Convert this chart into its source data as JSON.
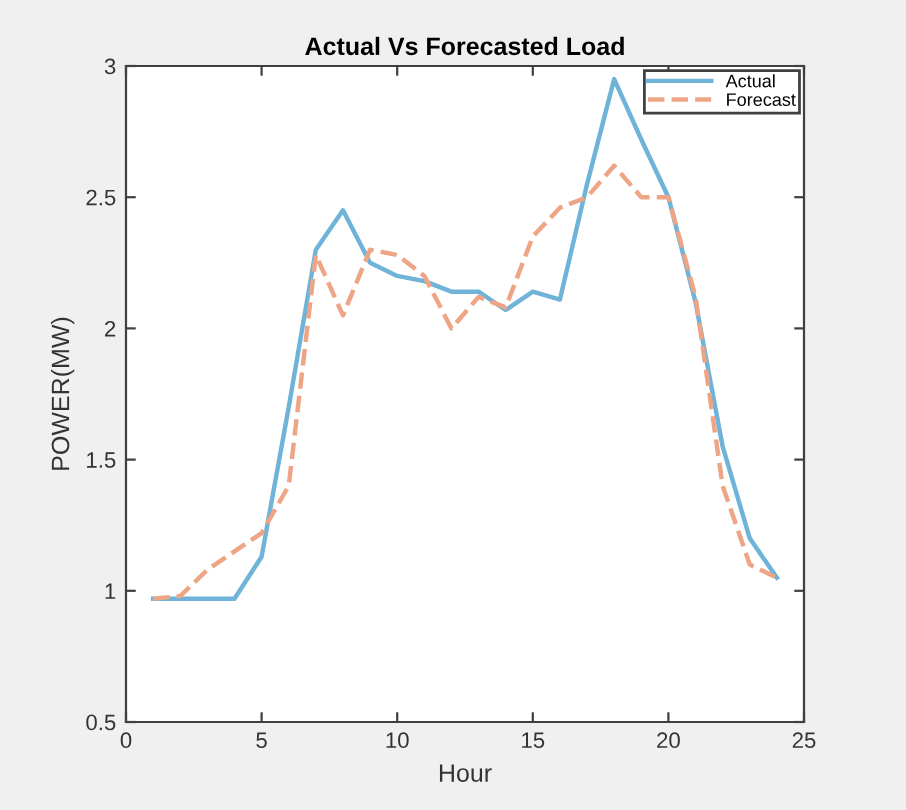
{
  "chart_data": {
    "type": "line",
    "title": "Actual Vs Forecasted Load",
    "xlabel": "Hour",
    "ylabel": "POWER(MW)",
    "x": [
      1,
      2,
      3,
      4,
      5,
      6,
      7,
      8,
      9,
      10,
      11,
      12,
      13,
      14,
      15,
      16,
      17,
      18,
      19,
      20,
      21,
      22,
      23,
      24
    ],
    "series": [
      {
        "name": "Actual",
        "color": "#6fb3d8",
        "line_style": "solid",
        "values": [
          0.97,
          0.97,
          0.97,
          0.97,
          1.13,
          1.7,
          2.3,
          2.45,
          2.25,
          2.2,
          2.18,
          2.14,
          2.14,
          2.07,
          2.14,
          2.11,
          2.55,
          2.95,
          2.72,
          2.5,
          2.1,
          1.55,
          1.2,
          1.05
        ]
      },
      {
        "name": "Forecast",
        "color": "#eea585",
        "line_style": "dashed",
        "values": [
          0.97,
          0.98,
          1.08,
          1.15,
          1.22,
          1.4,
          2.28,
          2.05,
          2.3,
          2.28,
          2.2,
          2.0,
          2.12,
          2.08,
          2.35,
          2.46,
          2.5,
          2.62,
          2.5,
          2.5,
          2.12,
          1.4,
          1.1,
          1.05
        ]
      }
    ],
    "xlim": [
      0,
      25
    ],
    "xticks": [
      0,
      5,
      10,
      15,
      20,
      25
    ],
    "ylim": [
      0.5,
      3
    ],
    "yticks": [
      0.5,
      1,
      1.5,
      2,
      2.5,
      3
    ],
    "grid": false,
    "legend": "top right"
  }
}
